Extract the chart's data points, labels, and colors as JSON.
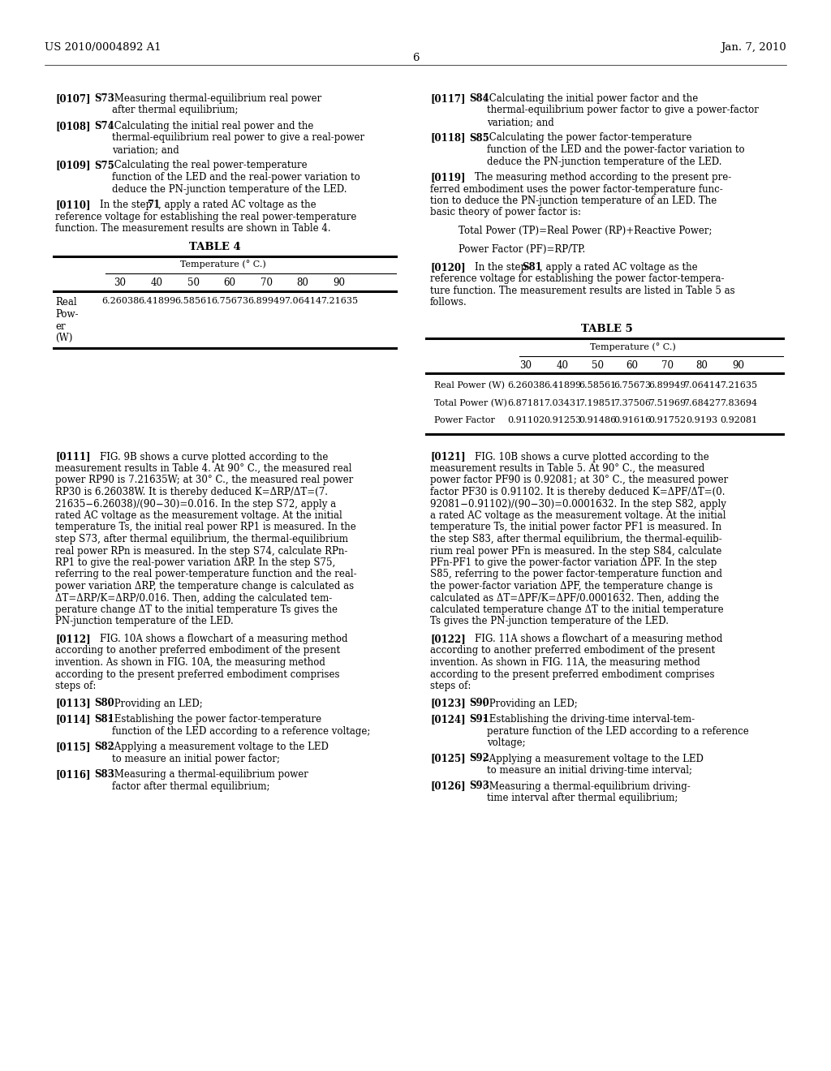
{
  "background_color": "#ffffff",
  "page_header_left": "US 2010/0004892 A1",
  "page_header_right": "Jan. 7, 2010",
  "page_number": "6",
  "table4_title": "TABLE 4",
  "table4_header_label": "Temperature (° C.)",
  "table4_col_headers": [
    "30",
    "40",
    "50",
    "60",
    "70",
    "80",
    "90"
  ],
  "table4_row_values": [
    "6.26038",
    "6.41899",
    "6.58561",
    "6.75673",
    "6.89949",
    "7.06414",
    "7.21635"
  ],
  "table5_title": "TABLE 5",
  "table5_header_label": "Temperature (° C.)",
  "table5_col_headers": [
    "30",
    "40",
    "50",
    "60",
    "70",
    "80",
    "90"
  ],
  "table5_rows": [
    {
      "label": "Real Power (W)",
      "values": [
        "6.26038",
        "6.41899",
        "6.58561",
        "6.75673",
        "6.89949",
        "7.06414",
        "7.21635"
      ]
    },
    {
      "label": "Total Power (W)",
      "values": [
        "6.87181",
        "7.03431",
        "7.19851",
        "7.37506",
        "7.51969",
        "7.68427",
        "7.83694"
      ]
    },
    {
      "label": "Power Factor",
      "values": [
        "0.91102",
        "0.91253",
        "0.91486",
        "0.91616",
        "0.91752",
        "0.9193",
        "0.92081"
      ]
    }
  ]
}
